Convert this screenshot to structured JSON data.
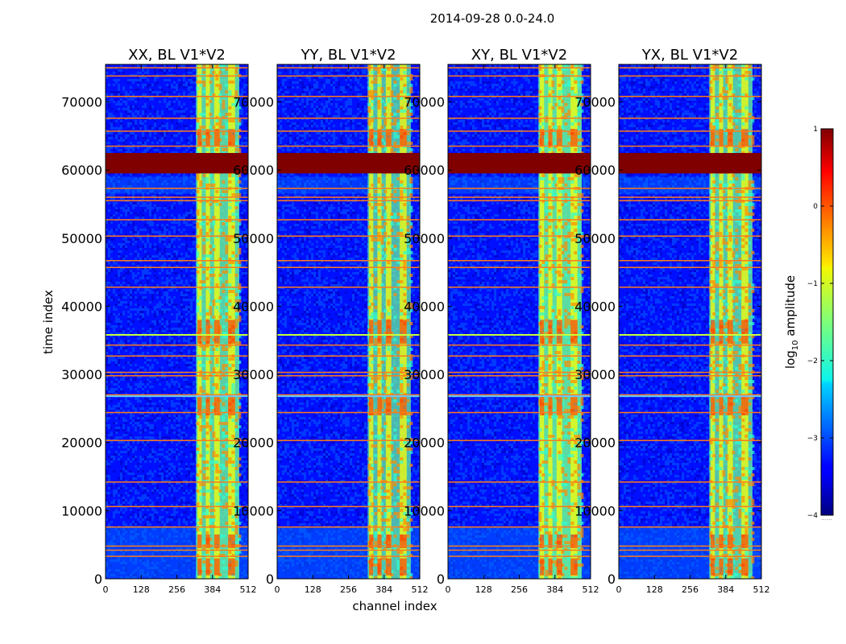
{
  "figure": {
    "suptitle": "2014-09-28 0.0-24.0",
    "xlabel": "channel index",
    "ylabel": "time index"
  },
  "colorbar": {
    "label_prefix": "log",
    "label_sub": "10",
    "label_suffix": " amplitude",
    "range": [
      -4,
      1
    ],
    "ticks": [
      1,
      0,
      -1,
      -2,
      -3,
      -4
    ],
    "tick_labels": [
      "1",
      "0",
      "−1",
      "−2",
      "−3",
      "−4"
    ],
    "footnote": "······",
    "colormap": "jet"
  },
  "chart_data": {
    "type": "heatmap",
    "colormap": "jet",
    "x_range": [
      0,
      512
    ],
    "y_range": [
      0,
      75500
    ],
    "x_ticks": [
      0,
      128,
      256,
      384,
      512
    ],
    "x_tick_labels": [
      "0",
      "128",
      "256",
      "384",
      "512"
    ],
    "y_ticks": [
      0,
      10000,
      20000,
      30000,
      40000,
      50000,
      60000,
      70000
    ],
    "y_tick_labels": [
      "0",
      "10000",
      "20000",
      "30000",
      "40000",
      "50000",
      "60000",
      "70000"
    ],
    "value_label": "log10 amplitude",
    "value_range": [
      -4,
      1
    ],
    "background_level": -3.3,
    "band_level": -1.6,
    "band_channels": [
      [
        325,
        480
      ]
    ],
    "band_stripe_channels": [
      [
        330,
        345
      ],
      [
        360,
        375
      ],
      [
        390,
        410
      ],
      [
        440,
        465
      ]
    ],
    "saturated_time_block": [
      59500,
      62500
    ],
    "rfi_time_rows": [
      75000,
      73800,
      70800,
      67600,
      65700,
      63500,
      57300,
      56000,
      55500,
      52700,
      50300,
      46700,
      45700,
      42800,
      35800,
      34300,
      32700,
      30300,
      29800,
      27000,
      24400,
      20300,
      14200,
      10600,
      7600,
      4800,
      4200,
      3300
    ],
    "panels": [
      {
        "title": "XX, BL V1*V2",
        "band_strength": 0.8
      },
      {
        "title": "YY, BL V1*V2",
        "band_strength": 0.7
      },
      {
        "title": "XY, BL V1*V2",
        "band_strength": 0.85
      },
      {
        "title": "YX, BL V1*V2",
        "band_strength": 0.75
      }
    ]
  }
}
